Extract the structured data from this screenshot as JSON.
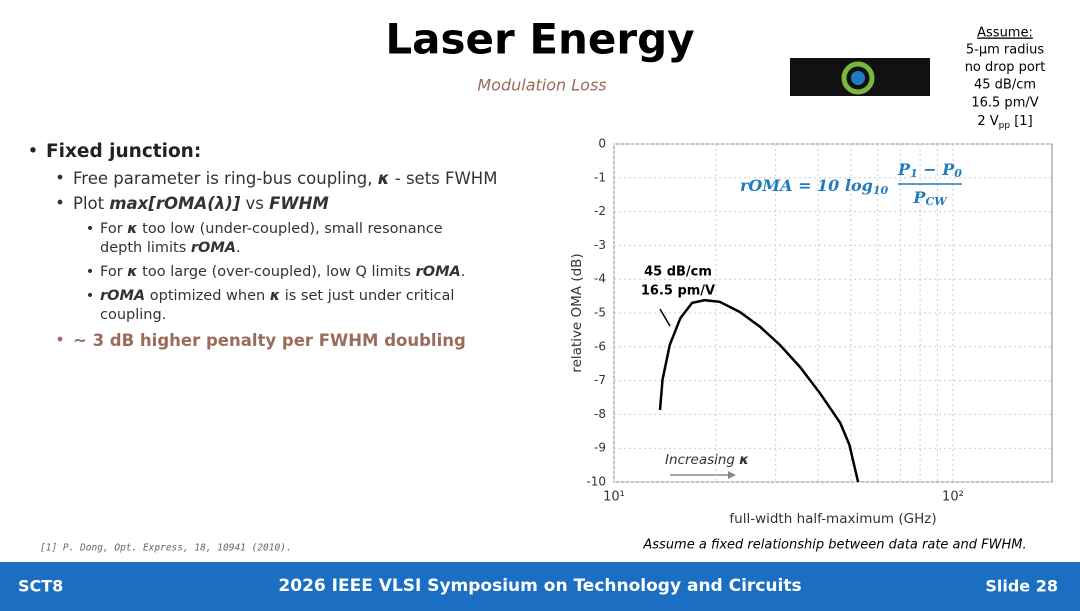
{
  "title": "Laser Energy",
  "subtitle": "Modulation Loss",
  "assume": {
    "heading": "Assume:",
    "lines": [
      "5-μm radius",
      "no drop port",
      "45 dB/cm",
      "16.5 pm/V"
    ],
    "last": {
      "text": "2 V",
      "sub": "pp",
      "tail": " [1]"
    }
  },
  "bullets": [
    {
      "level": 0,
      "color": "#222",
      "lines": [
        [
          {
            "t": "Fixed junction:",
            "s": "b"
          }
        ]
      ]
    },
    {
      "level": 1,
      "color": "#333",
      "lines": [
        [
          {
            "t": "Free parameter is ring-bus coupling, ",
            "s": "n"
          },
          {
            "t": "κ",
            "s": "bi"
          },
          {
            "t": " - sets FWHM",
            "s": "n"
          }
        ]
      ]
    },
    {
      "level": 1,
      "color": "#333",
      "lines": [
        [
          {
            "t": "Plot ",
            "s": "n"
          },
          {
            "t": "max[rOMA(λ)]",
            "s": "bi"
          },
          {
            "t": " vs ",
            "s": "n"
          },
          {
            "t": "FWHM",
            "s": "bi"
          }
        ]
      ]
    },
    {
      "level": 2,
      "color": "#333",
      "lines": [
        [
          {
            "t": "For ",
            "s": "n"
          },
          {
            "t": "κ",
            "s": "bi"
          },
          {
            "t": " too low (under-coupled), small resonance",
            "s": "n"
          }
        ],
        [
          {
            "t": "depth limits ",
            "s": "n"
          },
          {
            "t": "rOMA",
            "s": "bi"
          },
          {
            "t": ".",
            "s": "n"
          }
        ]
      ]
    },
    {
      "level": 2,
      "color": "#333",
      "lines": [
        [
          {
            "t": "For ",
            "s": "n"
          },
          {
            "t": "κ",
            "s": "bi"
          },
          {
            "t": " too large (over-coupled), low Q limits ",
            "s": "n"
          },
          {
            "t": "rOMA",
            "s": "bi"
          },
          {
            "t": ".",
            "s": "n"
          }
        ]
      ]
    },
    {
      "level": 2,
      "color": "#333",
      "lines": [
        [
          {
            "t": "rOMA",
            "s": "bi"
          },
          {
            "t": " optimized when ",
            "s": "n"
          },
          {
            "t": "κ",
            "s": "bi"
          },
          {
            "t": " is set just under critical",
            "s": "n"
          }
        ],
        [
          {
            "t": "coupling.",
            "s": "n"
          }
        ]
      ]
    },
    {
      "level": 1,
      "color": "#9c6b5a",
      "lines": [
        [
          {
            "t": "~ 3 dB higher penalty per FWHM doubling",
            "s": "b"
          }
        ]
      ]
    }
  ],
  "reference": "[1] P. Dong, Opt. Express, 18, 10941 (2010).",
  "caption": "Assume a fixed relationship between data rate and FWHM.",
  "footer": {
    "left": "SCT8",
    "center": "2026 IEEE VLSI Symposium on Technology and Circuits",
    "right": "Slide 28"
  },
  "chart_data": {
    "type": "line",
    "xlabel": "full-width half-maximum (GHz)",
    "ylabel": "relative OMA (dB)",
    "x": [
      13.67,
      13.9,
      14.6,
      15.7,
      17.0,
      18.5,
      20.5,
      23.5,
      27.0,
      30.9,
      35.4,
      40.5,
      46.5,
      49.5,
      52.5
    ],
    "values": [
      -7.87,
      -6.98,
      -5.95,
      -5.15,
      -4.7,
      -4.62,
      -4.67,
      -4.97,
      -5.41,
      -5.95,
      -6.6,
      -7.37,
      -8.25,
      -8.9,
      -10
    ],
    "color": "#000",
    "xscale": "log",
    "xlim": [
      10,
      196
    ],
    "ylim": [
      -10,
      0
    ],
    "xticks": [
      {
        "value": 10,
        "label": "10¹"
      },
      {
        "value": 100,
        "label": "10²"
      }
    ],
    "x_minor_grid": [
      20,
      30,
      40,
      50,
      60,
      70,
      80,
      90
    ],
    "yticks": [
      0,
      -1,
      -2,
      -3,
      -4,
      -5,
      -6,
      -7,
      -8,
      -9,
      -10
    ],
    "grid": true,
    "annotations": [
      "45 dB/cm",
      "16.5 pm/V",
      "Increasing "
    ],
    "annotation_symbol": "κ",
    "formula": {
      "lhs": "rOMA = 10 log",
      "base": "10",
      "num": [
        "P",
        "1",
        " − P",
        "0"
      ],
      "den": [
        "P",
        "CW"
      ],
      "color": "#1f7bc0"
    }
  }
}
